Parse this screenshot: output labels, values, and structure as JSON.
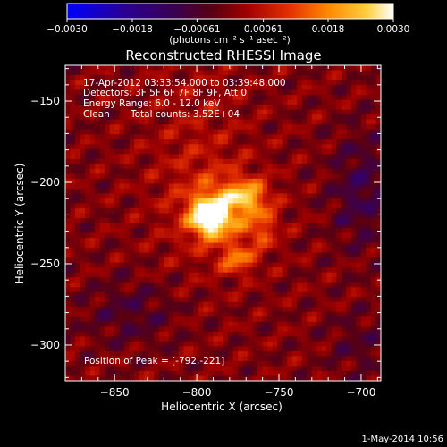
{
  "chart_data": {
    "type": "heatmap",
    "title": "Reconstructed RHESSI Image",
    "xlabel": "Heliocentric X (arcsec)",
    "ylabel": "Heliocentric Y (arcsec)",
    "xlim": [
      -880,
      -688
    ],
    "ylim": [
      -322,
      -128
    ],
    "x_ticks": [
      {
        "value": -850,
        "label": "−850"
      },
      {
        "value": -800,
        "label": "−800"
      },
      {
        "value": -750,
        "label": "−750"
      },
      {
        "value": -700,
        "label": "−700"
      }
    ],
    "y_ticks": [
      {
        "value": -150,
        "label": "−150"
      },
      {
        "value": -200,
        "label": "−200"
      },
      {
        "value": -250,
        "label": "−250"
      },
      {
        "value": -300,
        "label": "−300"
      }
    ],
    "colorbar": {
      "range": [
        -0.003,
        0.003
      ],
      "ticks": [
        {
          "value": -0.003,
          "label": "−0.0030"
        },
        {
          "value": -0.0018,
          "label": "−0.0018"
        },
        {
          "value": -0.00061,
          "label": "−0.00061"
        },
        {
          "value": 0.00061,
          "label": "0.00061"
        },
        {
          "value": 0.0018,
          "label": "0.0018"
        },
        {
          "value": 0.003,
          "label": "0.0030"
        }
      ],
      "units_label": "(photons cm⁻² s⁻¹ asec⁻²)"
    },
    "annotations": {
      "time_range": "17-Apr-2012 03:33:54.000 to 03:39:48.000",
      "detectors": "Detectors: 3F 5F 6F 7F 8F 9F, Att 0",
      "energy_range": "Energy Range: 6.0 - 12.0 keV",
      "method": "Clean",
      "total_counts": "Total counts: 3.52E+04",
      "peak_position": "Position of Peak = [-792,-221]"
    },
    "peak": {
      "x": -792,
      "y": -221
    },
    "footer_date": "1-May-2014 10:56"
  }
}
